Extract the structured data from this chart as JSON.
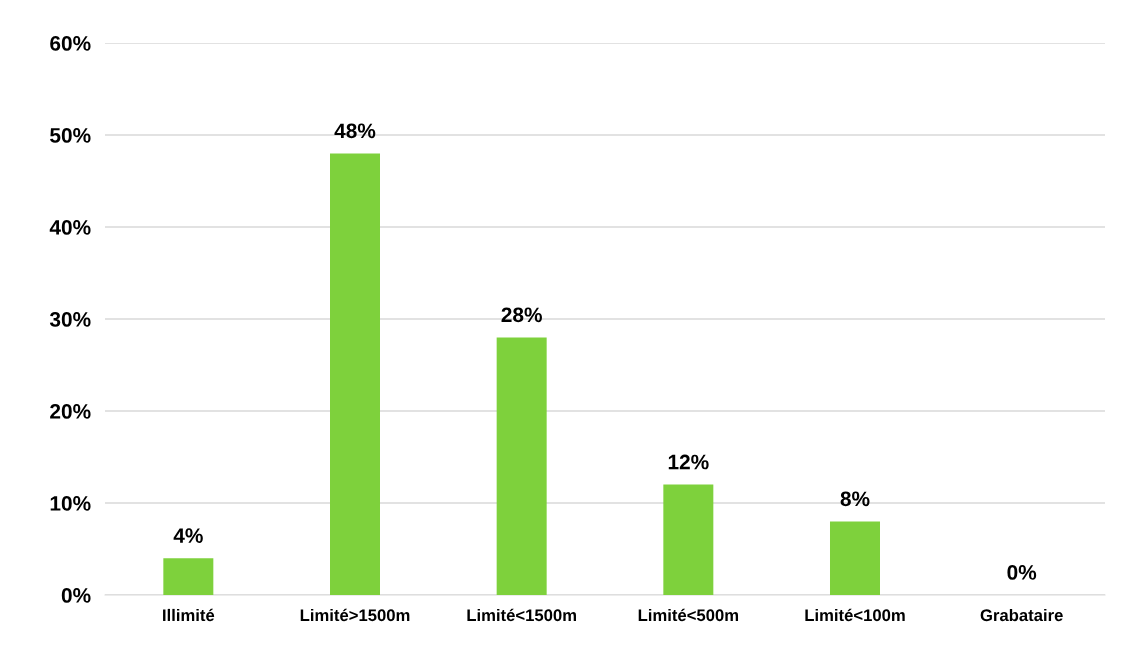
{
  "chart_data": {
    "type": "bar",
    "categories": [
      "Illimité",
      "Limité>1500m",
      "Limité<1500m",
      "Limité<500m",
      "Limité<100m",
      "Grabataire"
    ],
    "values": [
      4,
      48,
      28,
      12,
      8,
      0
    ],
    "value_labels": [
      "4%",
      "48%",
      "28%",
      "12%",
      "8%",
      "0%"
    ],
    "color": "#7ed13c",
    "ylim": [
      0,
      60
    ],
    "yticks": [
      {
        "value": 0,
        "label": "0%"
      },
      {
        "value": 10,
        "label": "10%"
      },
      {
        "value": 20,
        "label": "20%"
      },
      {
        "value": 30,
        "label": "30%"
      },
      {
        "value": 40,
        "label": "40%"
      },
      {
        "value": 50,
        "label": "50%"
      },
      {
        "value": 60,
        "label": "60%"
      }
    ],
    "grid": "y"
  }
}
